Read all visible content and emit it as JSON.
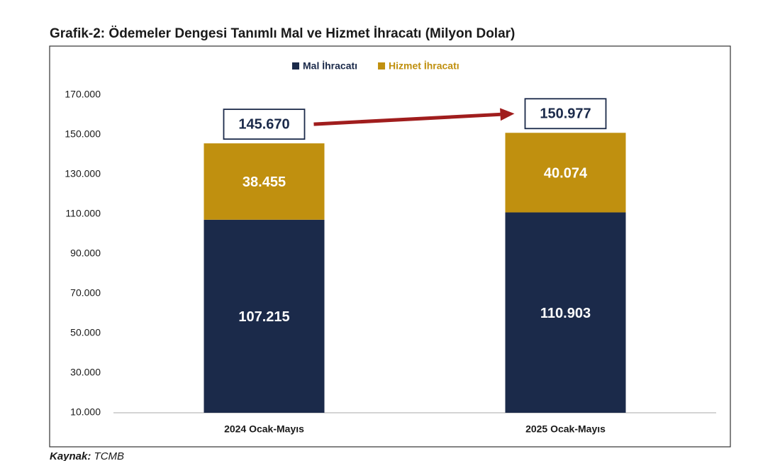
{
  "chart_data": {
    "type": "stacked_bar",
    "title": "Grafik-2: Ödemeler Dengesi Tanımlı Mal ve Hizmet İhracatı (Milyon Dolar)",
    "categories": [
      "2024 Ocak-Mayıs",
      "2025 Ocak-Mayıs"
    ],
    "series": [
      {
        "name": "Mal İhracatı",
        "color": "#1b2a4a",
        "values": [
          107215,
          110903
        ],
        "value_labels": [
          "107.215",
          "110.903"
        ]
      },
      {
        "name": "Hizmet İhracatı",
        "color": "#c0900f",
        "values": [
          38455,
          40074
        ],
        "value_labels": [
          "38.455",
          "40.074"
        ]
      }
    ],
    "totals": {
      "values": [
        145670,
        150977
      ],
      "value_labels": [
        "145.670",
        "150.977"
      ]
    },
    "ylim": [
      10000,
      170000
    ],
    "yticks": [
      {
        "value": 10000,
        "label": "10.000"
      },
      {
        "value": 30000,
        "label": "30.000"
      },
      {
        "value": 50000,
        "label": "50.000"
      },
      {
        "value": 70000,
        "label": "70.000"
      },
      {
        "value": 90000,
        "label": "90.000"
      },
      {
        "value": 110000,
        "label": "110.000"
      },
      {
        "value": 130000,
        "label": "130.000"
      },
      {
        "value": 150000,
        "label": "150.000"
      },
      {
        "value": 170000,
        "label": "170.000"
      }
    ],
    "grid": false,
    "legend": "top",
    "source_label": "Kaynak:",
    "source": "TCMB"
  }
}
